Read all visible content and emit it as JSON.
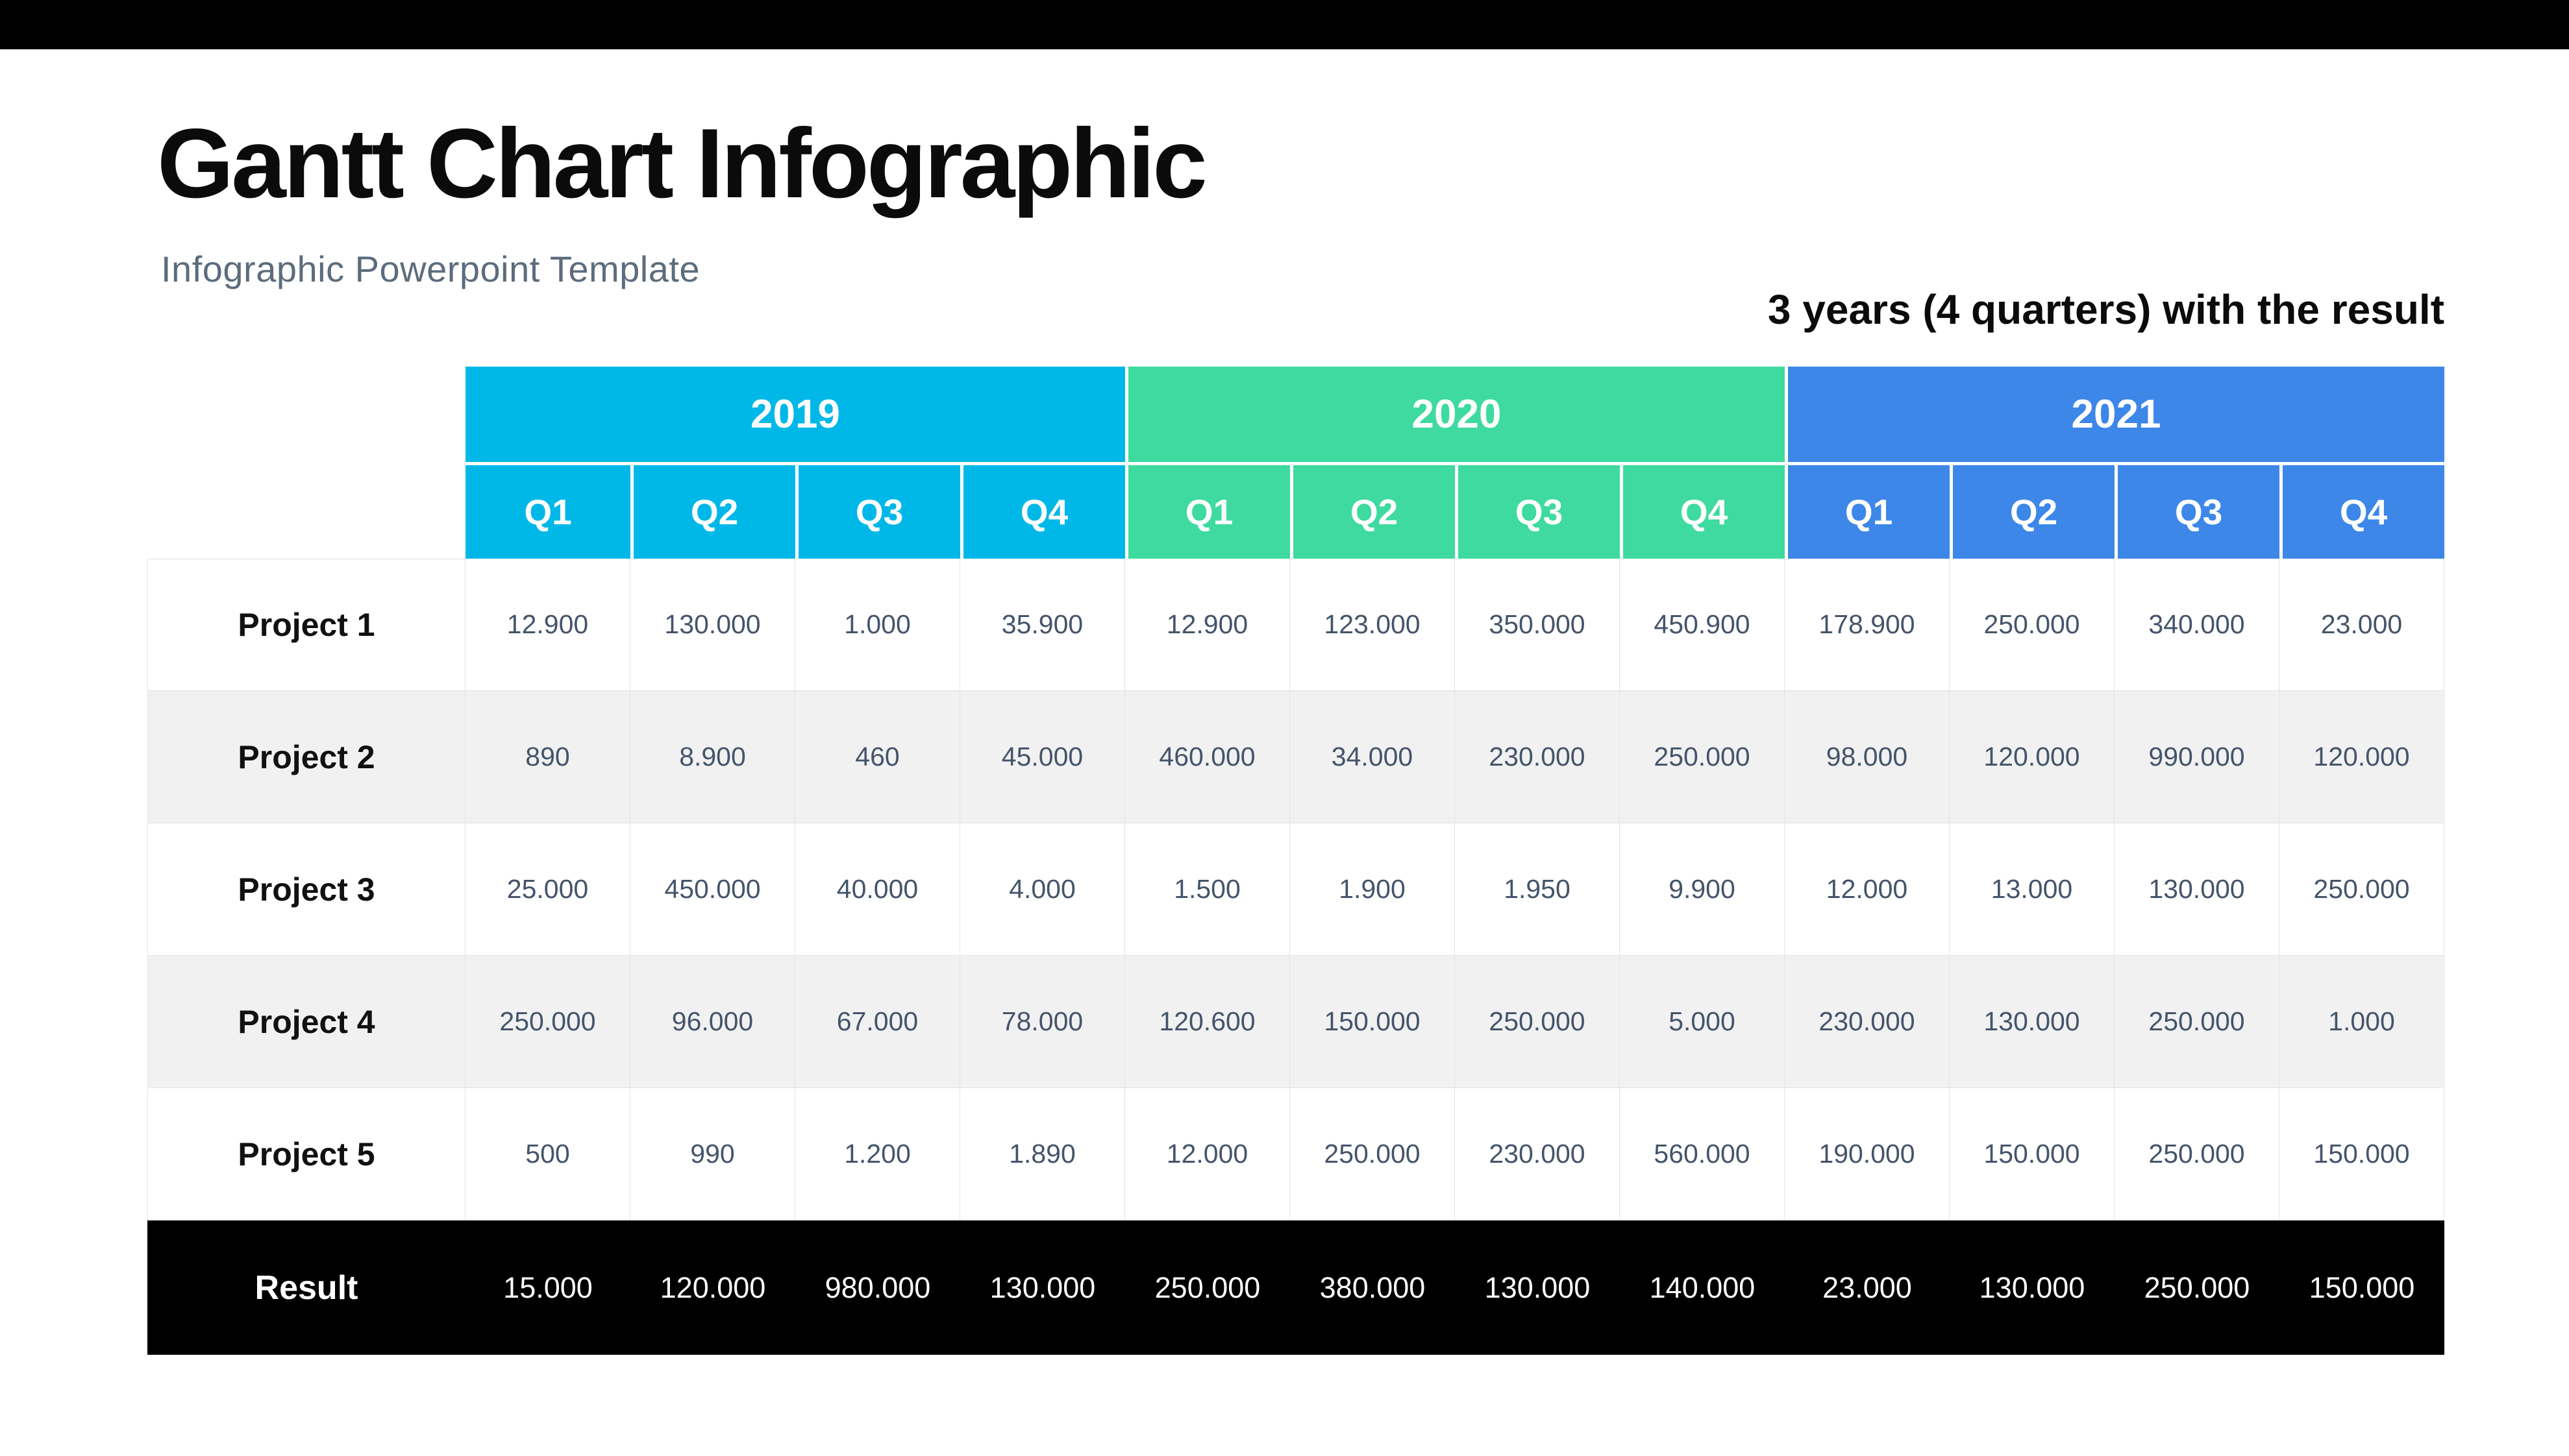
{
  "header": {
    "title": "Gantt Chart Infographic",
    "subtitle": "Infographic Powerpoint Template",
    "note": "3 years (4 quarters) with the result"
  },
  "colors": {
    "top_bar": "#000000",
    "year_2019": "#00b8e8",
    "year_2020": "#3eda9f",
    "year_2021": "#3d87e8",
    "result_bg": "#000000",
    "row_alt_bg": "#f1f1f2",
    "value_text": "#44546a"
  },
  "chart_data": {
    "type": "table",
    "title": "Gantt Chart Infographic",
    "subtitle": "Infographic Powerpoint Template",
    "note": "3 years (4 quarters) with the result",
    "column_groups": [
      {
        "label": "2019",
        "color": "#00b8e8",
        "columns": [
          "Q1",
          "Q2",
          "Q3",
          "Q4"
        ]
      },
      {
        "label": "2020",
        "color": "#3eda9f",
        "columns": [
          "Q1",
          "Q2",
          "Q3",
          "Q4"
        ]
      },
      {
        "label": "2021",
        "color": "#3d87e8",
        "columns": [
          "Q1",
          "Q2",
          "Q3",
          "Q4"
        ]
      }
    ],
    "rows": [
      {
        "label": "Project 1",
        "values": [
          "12.900",
          "130.000",
          "1.000",
          "35.900",
          "12.900",
          "123.000",
          "350.000",
          "450.900",
          "178.900",
          "250.000",
          "340.000",
          "23.000"
        ]
      },
      {
        "label": "Project 2",
        "values": [
          "890",
          "8.900",
          "460",
          "45.000",
          "460.000",
          "34.000",
          "230.000",
          "250.000",
          "98.000",
          "120.000",
          "990.000",
          "120.000"
        ]
      },
      {
        "label": "Project 3",
        "values": [
          "25.000",
          "450.000",
          "40.000",
          "4.000",
          "1.500",
          "1.900",
          "1.950",
          "9.900",
          "12.000",
          "13.000",
          "130.000",
          "250.000"
        ]
      },
      {
        "label": "Project 4",
        "values": [
          "250.000",
          "96.000",
          "67.000",
          "78.000",
          "120.600",
          "150.000",
          "250.000",
          "5.000",
          "230.000",
          "130.000",
          "250.000",
          "1.000"
        ]
      },
      {
        "label": "Project 5",
        "values": [
          "500",
          "990",
          "1.200",
          "1.890",
          "12.000",
          "250.000",
          "230.000",
          "560.000",
          "190.000",
          "150.000",
          "250.000",
          "150.000"
        ]
      }
    ],
    "footer_row": {
      "label": "Result",
      "values": [
        "15.000",
        "120.000",
        "980.000",
        "130.000",
        "250.000",
        "380.000",
        "130.000",
        "140.000",
        "23.000",
        "130.000",
        "250.000",
        "150.000"
      ]
    }
  }
}
